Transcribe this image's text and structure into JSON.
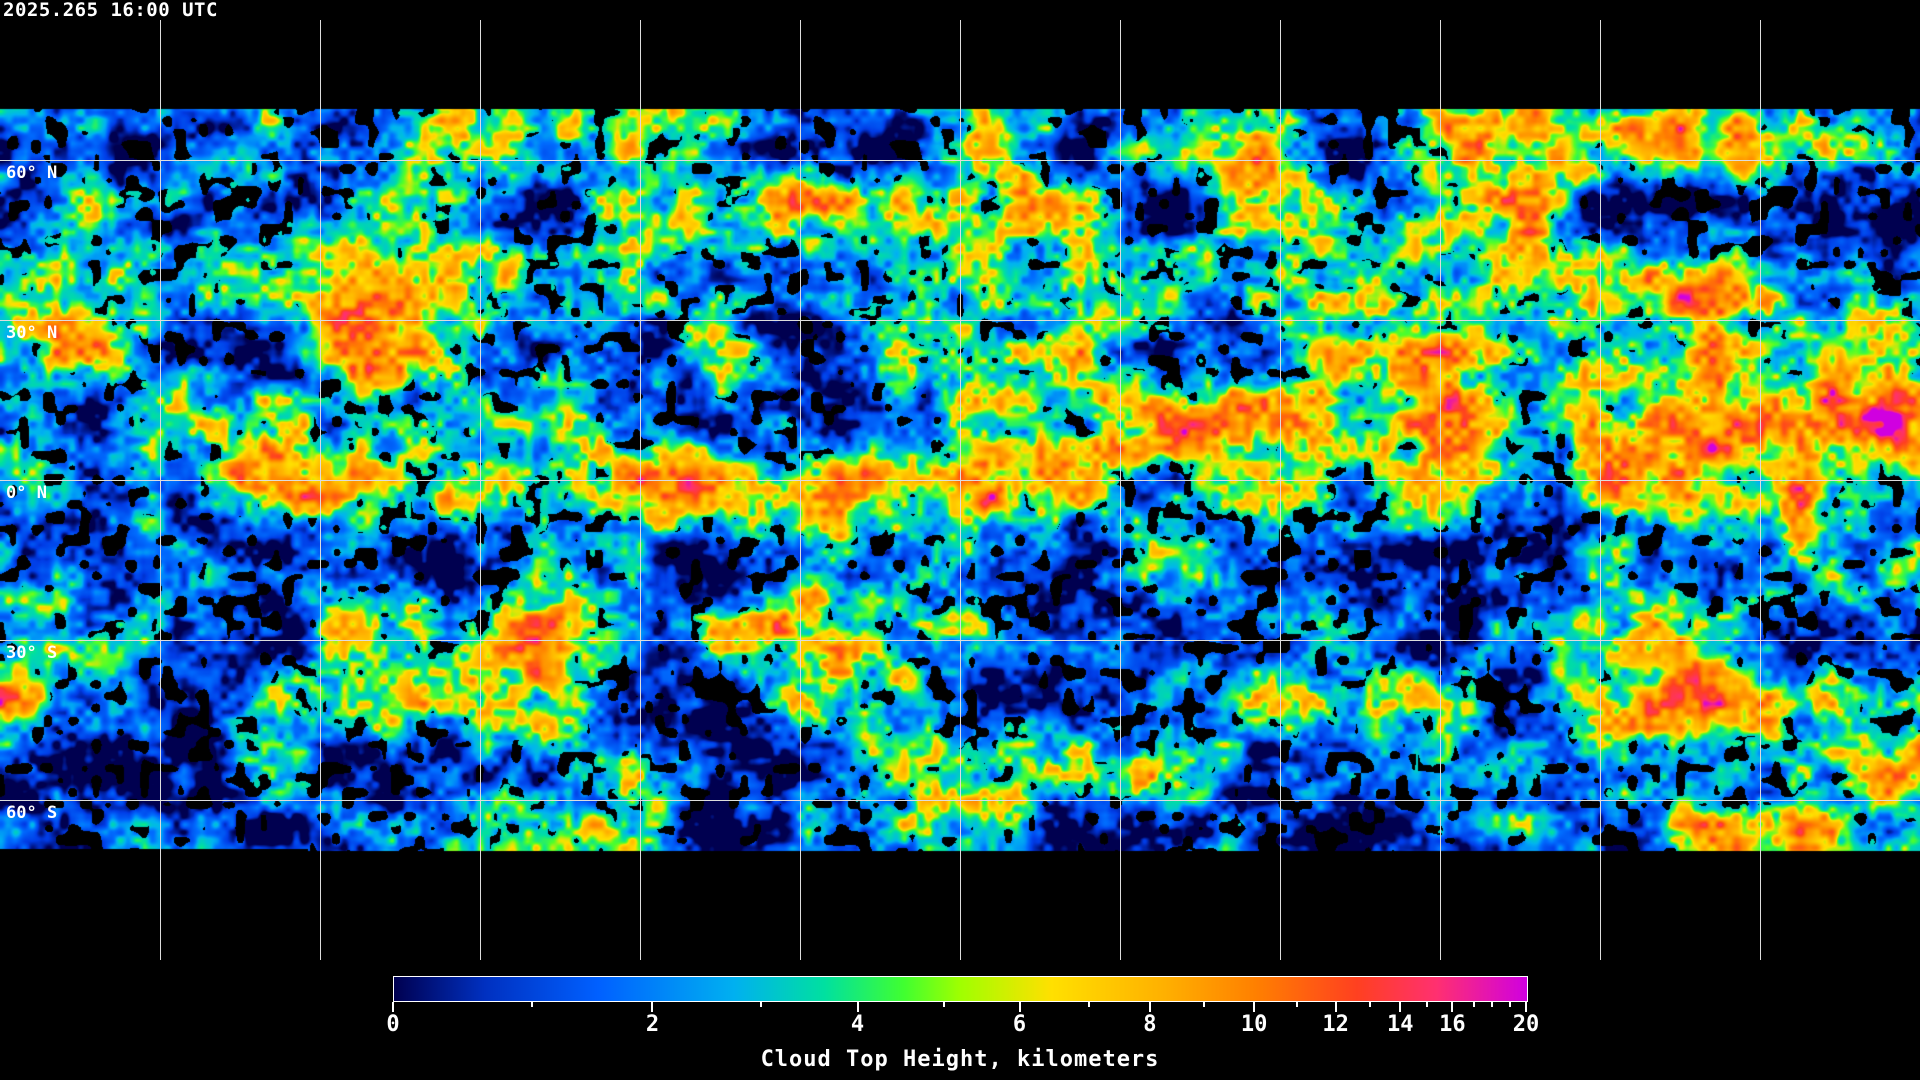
{
  "header": {
    "timestamp": "2025.265 16:00 UTC"
  },
  "map": {
    "projection": "equirectangular",
    "lon_range": [
      -180,
      180
    ],
    "lat_range": [
      -90,
      90
    ],
    "grid_spacing_deg": 30,
    "lat_labels": [
      "60° N",
      "30° N",
      "0° N",
      "30° S",
      "60° S"
    ],
    "coastline_color": "#ffffff",
    "no_data_color": "#000000"
  },
  "colorbar": {
    "title": "Cloud Top Height, kilometers",
    "range": [
      0,
      20
    ],
    "major_ticks": [
      "0",
      "2",
      "4",
      "6",
      "8",
      "10",
      "12",
      "14",
      "16",
      "20"
    ],
    "minor_ticks": [
      1,
      3,
      5,
      7,
      9,
      11,
      13,
      15,
      17,
      18,
      19
    ],
    "colors": [
      "#000050",
      "#0060ff",
      "#00b0f0",
      "#40ff30",
      "#ffe000",
      "#ff8000",
      "#ff4020",
      "#ff3070",
      "#d000e0"
    ]
  }
}
